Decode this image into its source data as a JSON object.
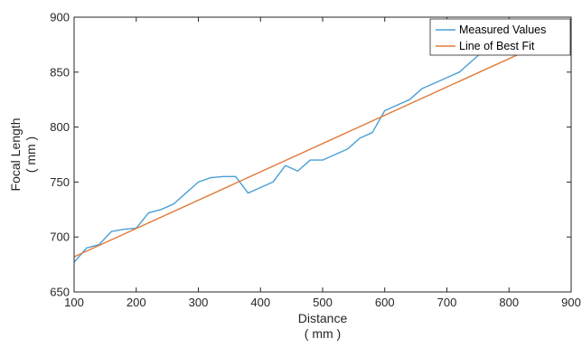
{
  "chart_data": {
    "type": "line",
    "title": "",
    "xlabel": "Distance",
    "xlabel_unit": "( mm )",
    "ylabel": "Focal Length",
    "ylabel_unit": "( mm )",
    "xlim": [
      100,
      900
    ],
    "ylim": [
      650,
      900
    ],
    "xticks": [
      100,
      200,
      300,
      400,
      500,
      600,
      700,
      800,
      900
    ],
    "yticks": [
      650,
      700,
      750,
      800,
      850,
      900
    ],
    "grid": false,
    "legend_position": "top-right",
    "series": [
      {
        "name": "Measured Values",
        "color": "#4a9fd6",
        "x": [
          100,
          120,
          140,
          160,
          180,
          200,
          220,
          240,
          260,
          280,
          300,
          320,
          340,
          360,
          380,
          400,
          420,
          440,
          460,
          480,
          500,
          520,
          540,
          560,
          580,
          600,
          620,
          640,
          660,
          680,
          700,
          720,
          740,
          760,
          780,
          800,
          820,
          840,
          860,
          880,
          900
        ],
        "y": [
          677,
          690,
          693,
          705,
          707,
          708,
          722,
          725,
          730,
          740,
          750,
          754,
          755,
          755,
          740,
          745,
          750,
          765,
          760,
          770,
          770,
          775,
          780,
          790,
          795,
          815,
          820,
          825,
          835,
          840,
          845,
          850,
          860,
          870,
          875,
          878,
          880,
          880,
          876,
          872,
          875
        ]
      },
      {
        "name": "Line of Best Fit",
        "color": "#e07b3a",
        "x": [
          100,
          900
        ],
        "y": [
          682,
          888
        ]
      }
    ]
  }
}
